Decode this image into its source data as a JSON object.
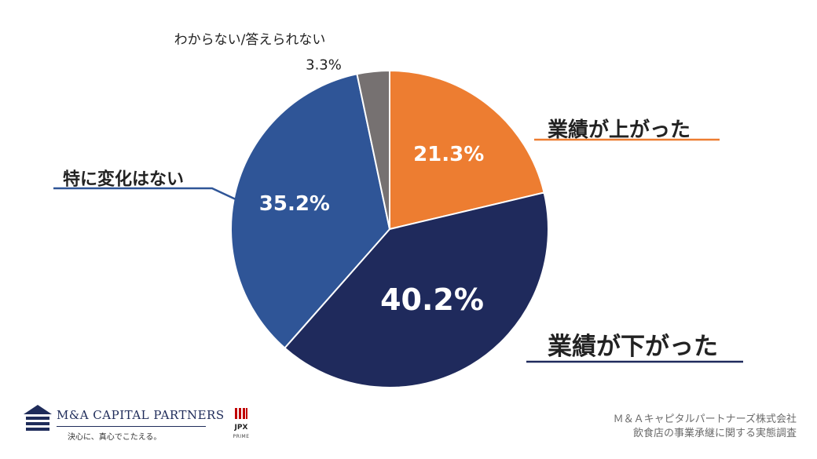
{
  "chart_data": {
    "type": "pie",
    "start": "12 o'clock, clockwise",
    "slices": [
      {
        "label": "業績が上がった",
        "value": 21.3,
        "value_label": "21.3%",
        "color": "#ED7D31"
      },
      {
        "label": "業績が下がった",
        "value": 40.2,
        "value_label": "40.2%",
        "color": "#1F2A5C"
      },
      {
        "label": "特に変化はない",
        "value": 35.2,
        "value_label": "35.2%",
        "color": "#2F5597"
      },
      {
        "label": "わからない/答えられない",
        "value": 3.3,
        "value_label": "3.3%",
        "color": "#767171"
      }
    ],
    "legend": "none",
    "callout_line_colors": {
      "orange": "#ED7D31",
      "navy": "#1F2A5C",
      "blue": "#2F5597"
    }
  },
  "footer": {
    "logo_name": "M&A CAPITAL PARTNERS",
    "logo_tagline": "決心に、真心でこたえる。",
    "jpx_name": "JPX",
    "jpx_segment": "PRIME",
    "credit_line1": "Ｍ＆Ａキャピタルパートナーズ株式会社",
    "credit_line2": "飲食店の事業承継に関する実態調査"
  }
}
